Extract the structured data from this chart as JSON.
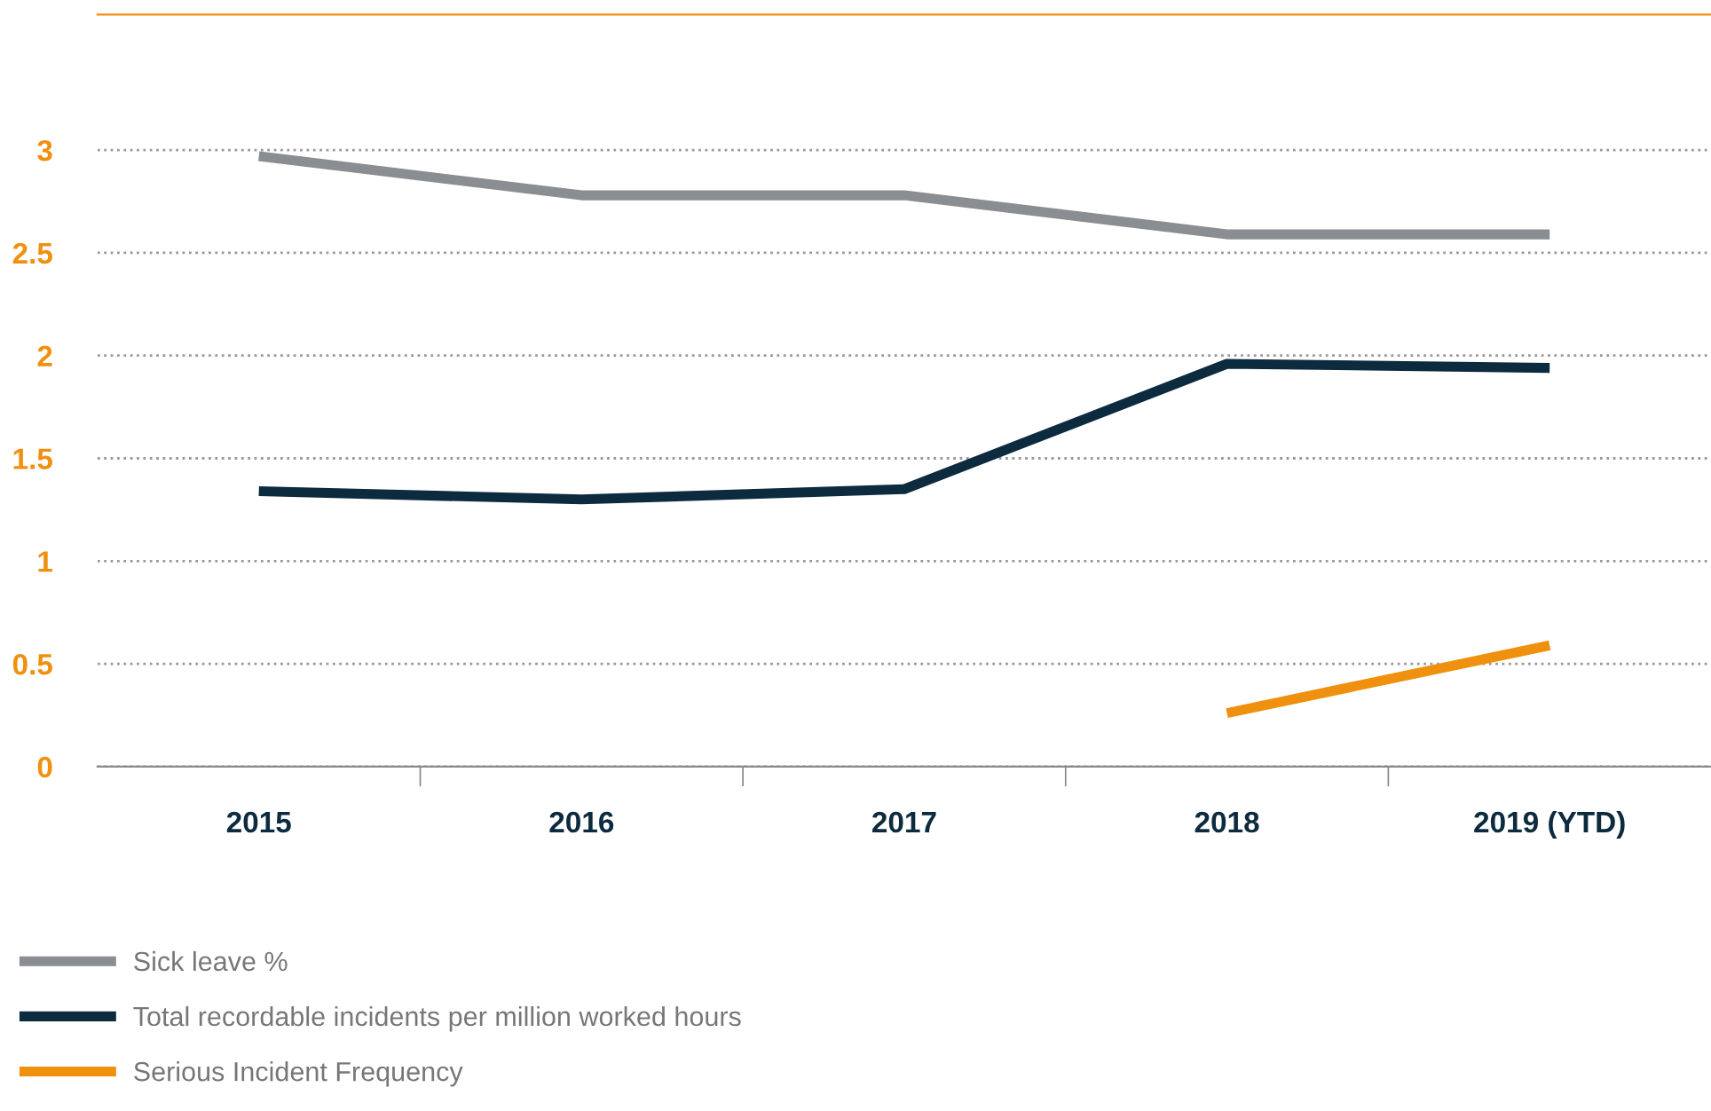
{
  "chart_data": {
    "type": "line",
    "categories": [
      "2015",
      "2016",
      "2017",
      "2018",
      "2019 (YTD)"
    ],
    "series": [
      {
        "name": "Sick leave %",
        "color": "#8a8d91",
        "values": [
          2.97,
          2.78,
          2.78,
          2.59,
          2.59
        ]
      },
      {
        "name": "Total recordable incidents per million worked hours",
        "color": "#0d2b3e",
        "values": [
          1.34,
          1.3,
          1.35,
          1.96,
          1.94
        ]
      },
      {
        "name": "Serious Incident Frequency",
        "color": "#f0900f",
        "values": [
          null,
          null,
          null,
          0.26,
          0.59
        ]
      }
    ],
    "ylim": [
      0,
      3.66
    ],
    "yticks": [
      0,
      0.5,
      1,
      1.5,
      2,
      2.5,
      3
    ],
    "grid": "y",
    "legend": "bottom",
    "marker": "none",
    "line_style": "solid"
  }
}
